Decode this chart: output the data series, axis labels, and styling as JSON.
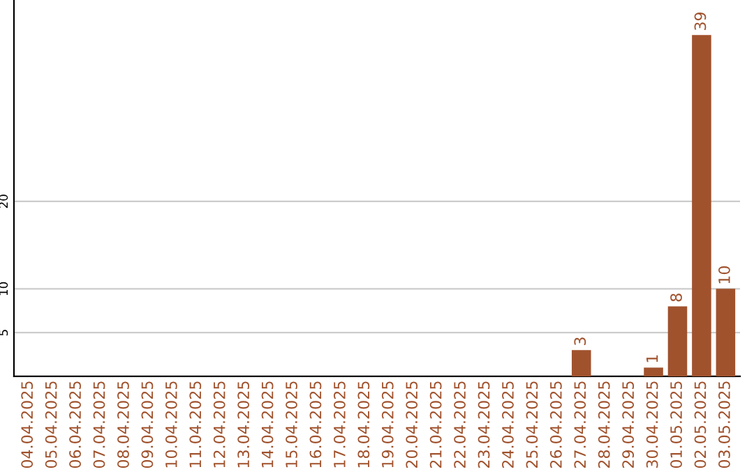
{
  "chart_data": {
    "type": "bar",
    "categories": [
      "04.04.2025",
      "05.04.2025",
      "06.04.2025",
      "07.04.2025",
      "08.04.2025",
      "09.04.2025",
      "10.04.2025",
      "11.04.2025",
      "12.04.2025",
      "13.04.2025",
      "14.04.2025",
      "15.04.2025",
      "16.04.2025",
      "17.04.2025",
      "18.04.2025",
      "19.04.2025",
      "20.04.2025",
      "21.04.2025",
      "22.04.2025",
      "23.04.2025",
      "24.04.2025",
      "25.04.2025",
      "26.04.2025",
      "27.04.2025",
      "28.04.2025",
      "29.04.2025",
      "30.04.2025",
      "01.05.2025",
      "02.05.2025",
      "03.05.2025"
    ],
    "values": [
      0,
      0,
      0,
      0,
      0,
      0,
      0,
      0,
      0,
      0,
      0,
      0,
      0,
      0,
      0,
      0,
      0,
      0,
      0,
      0,
      0,
      0,
      0,
      3,
      0,
      0,
      1,
      8,
      39,
      10
    ],
    "value_labels": [
      null,
      null,
      null,
      null,
      null,
      null,
      null,
      null,
      null,
      null,
      null,
      null,
      null,
      null,
      null,
      null,
      null,
      null,
      null,
      null,
      null,
      null,
      null,
      "3",
      null,
      null,
      "1",
      "8",
      "39",
      "10"
    ],
    "color": "#a0522d",
    "ylim": [
      0,
      43
    ],
    "yticks": [
      5,
      10,
      20
    ],
    "grid": "y"
  }
}
